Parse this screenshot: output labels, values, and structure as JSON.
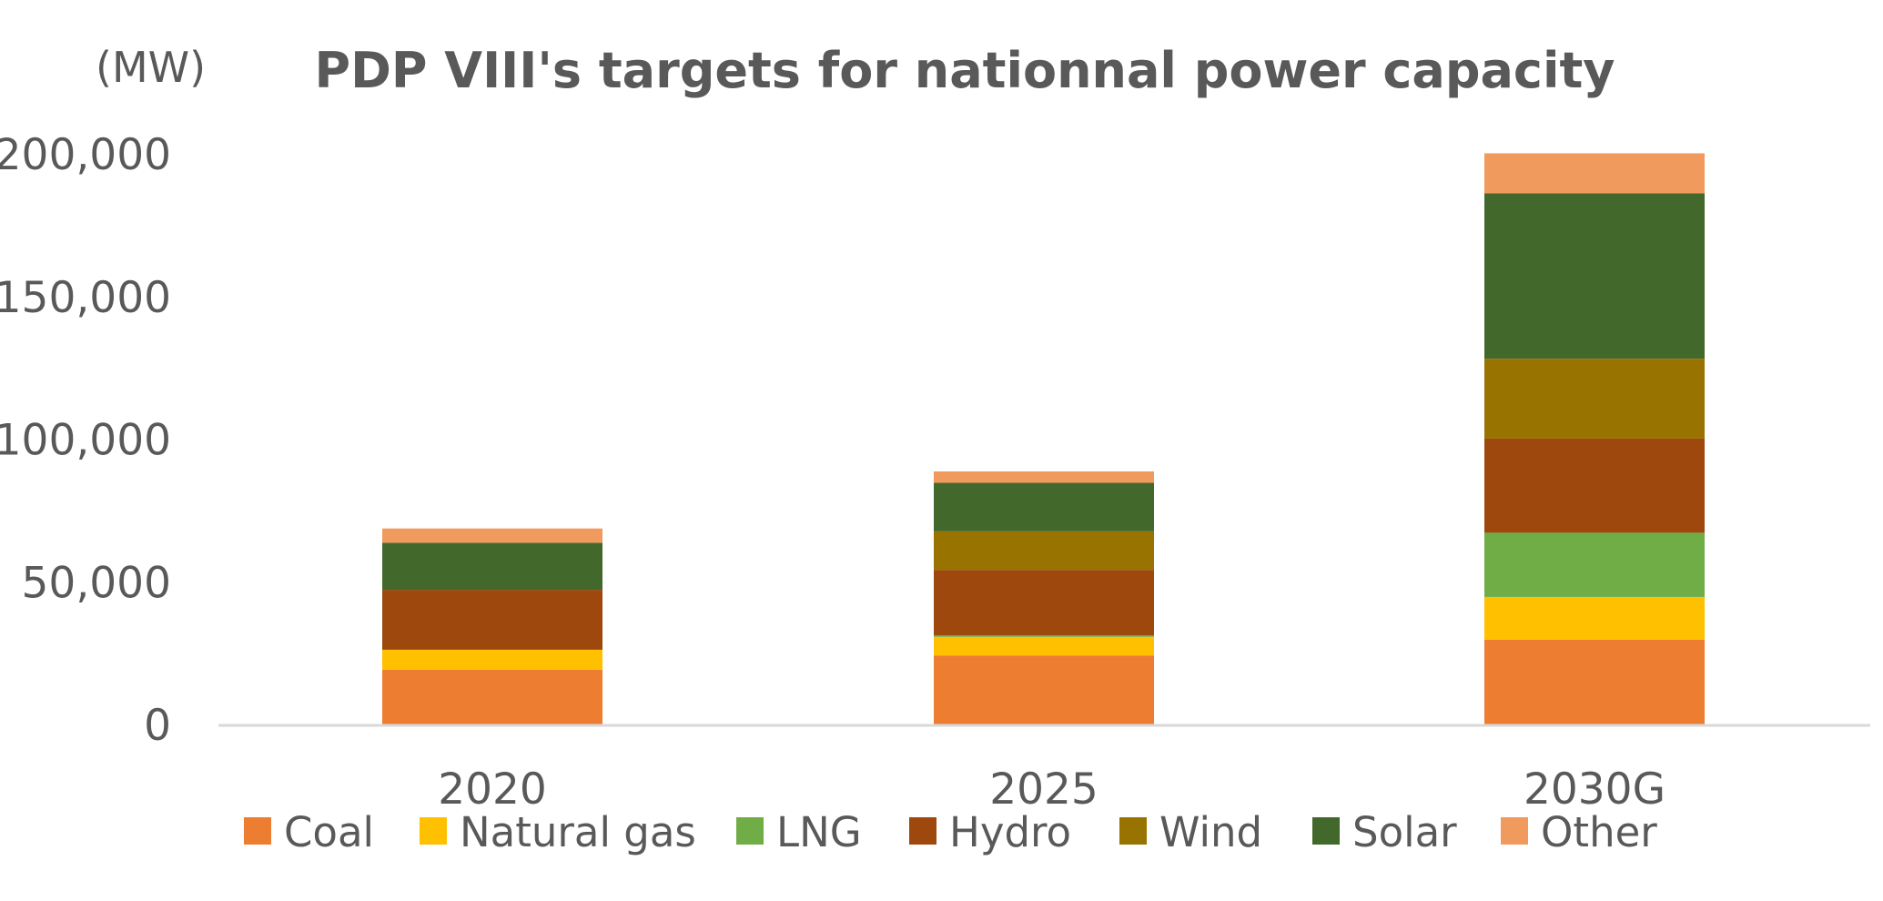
{
  "chart_data": {
    "type": "bar",
    "stacked": true,
    "title": "PDP VIII's targets for nationnal power capacity",
    "unit_label": "(MW)",
    "xlabel": "",
    "ylabel": "(MW)",
    "ylim": [
      0,
      200000
    ],
    "y_ticks": [
      0,
      50000,
      100000,
      150000,
      200000
    ],
    "y_tick_labels": [
      "0",
      "50,000",
      "100,000",
      "150,000",
      "200,000"
    ],
    "grid": false,
    "legend_position": "bottom",
    "categories": [
      "2020",
      "2025",
      "2030G"
    ],
    "series": [
      {
        "name": "Coal",
        "color": "#ED7D31",
        "values": [
          19500,
          24500,
          30000
        ]
      },
      {
        "name": "Natural gas",
        "color": "#FFC000",
        "values": [
          7000,
          6500,
          15000
        ]
      },
      {
        "name": "LNG",
        "color": "#70AD47",
        "values": [
          0,
          500,
          22500
        ]
      },
      {
        "name": "Hydro",
        "color": "#9E480E",
        "values": [
          21000,
          23000,
          33000
        ]
      },
      {
        "name": "Wind",
        "color": "#997300",
        "values": [
          0,
          13500,
          28000
        ]
      },
      {
        "name": "Solar",
        "color": "#43682B",
        "values": [
          16500,
          17000,
          58000
        ]
      },
      {
        "name": "Other",
        "color": "#F19A5E",
        "values": [
          5000,
          4000,
          14000
        ]
      }
    ]
  }
}
